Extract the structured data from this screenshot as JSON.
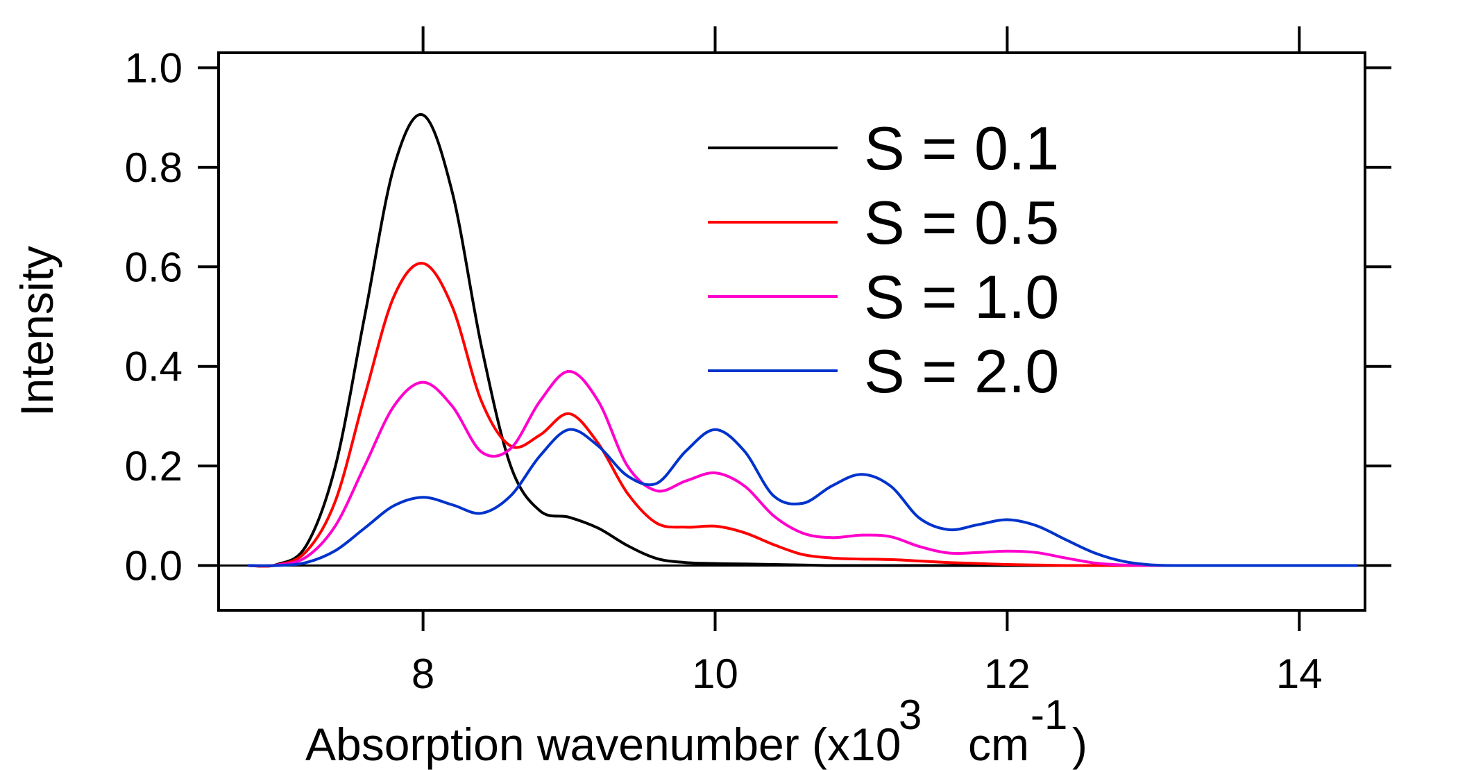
{
  "chart_data": {
    "type": "line",
    "xlabel": "Absorption wavenumber (x10",
    "xlabel_exp": "3",
    "xlabel_unit": "cm",
    "xlabel_unit_exp": "-1",
    "xlabel_close": ")",
    "ylabel": "Intensity",
    "xlim": [
      6.6,
      14.45
    ],
    "ylim": [
      -0.09,
      1.03
    ],
    "x_ticks": [
      8,
      10,
      12,
      14
    ],
    "x_tick_labels": [
      "8",
      "10",
      "12",
      "14"
    ],
    "y_ticks": [
      0.0,
      0.2,
      0.4,
      0.6,
      0.8,
      1.0
    ],
    "y_tick_labels": [
      "0.0",
      "0.2",
      "0.4",
      "0.6",
      "0.8",
      "1.0"
    ],
    "zero_line": true,
    "grid": false,
    "legend_position": "top-right",
    "x": [
      6.8,
      7.0,
      7.2,
      7.4,
      7.6,
      7.8,
      8.0,
      8.2,
      8.4,
      8.6,
      8.8,
      9.0,
      9.2,
      9.4,
      9.6,
      9.8,
      10.0,
      10.2,
      10.4,
      10.6,
      10.8,
      11.0,
      11.2,
      11.4,
      11.6,
      11.8,
      12.0,
      12.2,
      12.4,
      12.6,
      12.8,
      13.0,
      13.2,
      13.6,
      14.0,
      14.4
    ],
    "series": [
      {
        "name": "S = 0.1",
        "color": "#000000",
        "values": [
          0.0,
          0.002,
          0.04,
          0.2,
          0.5,
          0.8,
          0.905,
          0.75,
          0.44,
          0.2,
          0.11,
          0.097,
          0.075,
          0.04,
          0.014,
          0.006,
          0.004,
          0.003,
          0.002,
          0.001,
          0.0,
          0.0,
          0.0,
          0.0,
          0.0,
          0.0,
          0.0,
          0.0,
          0.0,
          0.0,
          0.0,
          0.0,
          0.0,
          0.0,
          0.0,
          0.0
        ]
      },
      {
        "name": "S = 0.5",
        "color": "#ff0000",
        "values": [
          0.0,
          0.001,
          0.028,
          0.13,
          0.34,
          0.54,
          0.607,
          0.52,
          0.33,
          0.24,
          0.262,
          0.305,
          0.245,
          0.145,
          0.085,
          0.077,
          0.079,
          0.066,
          0.042,
          0.022,
          0.015,
          0.013,
          0.012,
          0.009,
          0.006,
          0.004,
          0.002,
          0.001,
          0.0,
          0.0,
          0.0,
          0.0,
          0.0,
          0.0,
          0.0,
          0.0
        ]
      },
      {
        "name": "S = 1.0",
        "color": "#ff00cc",
        "values": [
          0.0,
          0.001,
          0.017,
          0.08,
          0.2,
          0.32,
          0.368,
          0.32,
          0.228,
          0.235,
          0.33,
          0.39,
          0.33,
          0.2,
          0.15,
          0.17,
          0.186,
          0.16,
          0.1,
          0.065,
          0.056,
          0.061,
          0.058,
          0.038,
          0.025,
          0.026,
          0.029,
          0.026,
          0.015,
          0.005,
          0.001,
          0.0,
          0.0,
          0.0,
          0.0,
          0.0
        ]
      },
      {
        "name": "S = 2.0",
        "color": "#0033cc",
        "values": [
          0.0,
          0.0,
          0.006,
          0.03,
          0.075,
          0.12,
          0.137,
          0.122,
          0.105,
          0.14,
          0.22,
          0.273,
          0.24,
          0.18,
          0.165,
          0.23,
          0.273,
          0.23,
          0.14,
          0.125,
          0.16,
          0.183,
          0.16,
          0.095,
          0.072,
          0.082,
          0.092,
          0.08,
          0.052,
          0.025,
          0.008,
          0.001,
          0.0,
          0.0,
          0.0,
          0.0
        ]
      }
    ]
  }
}
